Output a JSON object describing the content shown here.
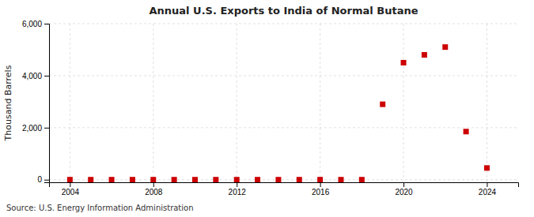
{
  "chart_data": {
    "type": "scatter",
    "title": "Annual U.S. Exports to India of Normal Butane",
    "ylabel": "Thousand Barrels",
    "annotation": "Source: U.S. Energy Information Administration",
    "color": "#cc0000",
    "marker": "square",
    "x": [
      2004,
      2005,
      2006,
      2007,
      2008,
      2009,
      2010,
      2011,
      2012,
      2013,
      2014,
      2015,
      2016,
      2017,
      2018,
      2019,
      2020,
      2021,
      2022,
      2023,
      2024
    ],
    "values": [
      0,
      0,
      0,
      0,
      0,
      0,
      0,
      0,
      0,
      0,
      0,
      0,
      0,
      0,
      0,
      2900,
      4500,
      4800,
      5100,
      1850,
      450
    ],
    "xlim": [
      2003.0,
      2025.5
    ],
    "xticks": [
      2004,
      2008,
      2012,
      2016,
      2020,
      2024
    ],
    "ylim": [
      -100,
      6000
    ],
    "yticks": [
      0,
      {
        "value": 2000,
        "label": "2,000"
      },
      {
        "value": 4000,
        "label": "4,000"
      },
      {
        "value": 6000,
        "label": "6,000"
      }
    ],
    "grid": true
  }
}
